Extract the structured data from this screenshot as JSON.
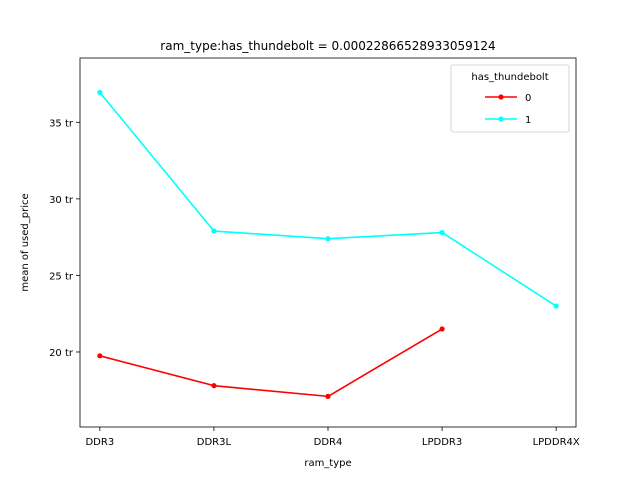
{
  "chart_data": {
    "type": "line",
    "title": "ram_type:has_thundebolt = 0.00022866528933059124",
    "xlabel": "ram_type",
    "ylabel": "mean of used_price",
    "categories": [
      "DDR3",
      "DDR3L",
      "DDR4",
      "LPDDR3",
      "LPDDR4X"
    ],
    "ylim": [
      15.1,
      39.2
    ],
    "yticks": [
      {
        "value": 20,
        "label": "20 tr"
      },
      {
        "value": 25,
        "label": "25 tr"
      },
      {
        "value": 30,
        "label": "30 tr"
      },
      {
        "value": 35,
        "label": "35 tr"
      }
    ],
    "grid": false,
    "legend": {
      "title": "has_thundebolt",
      "placement": "top-right"
    },
    "series": [
      {
        "name": "0",
        "color": "#ff0000",
        "values": [
          19.75,
          17.8,
          17.1,
          21.5,
          null
        ]
      },
      {
        "name": "1",
        "color": "#00ffff",
        "values": [
          36.95,
          27.9,
          27.4,
          27.8,
          23.0
        ]
      }
    ]
  }
}
